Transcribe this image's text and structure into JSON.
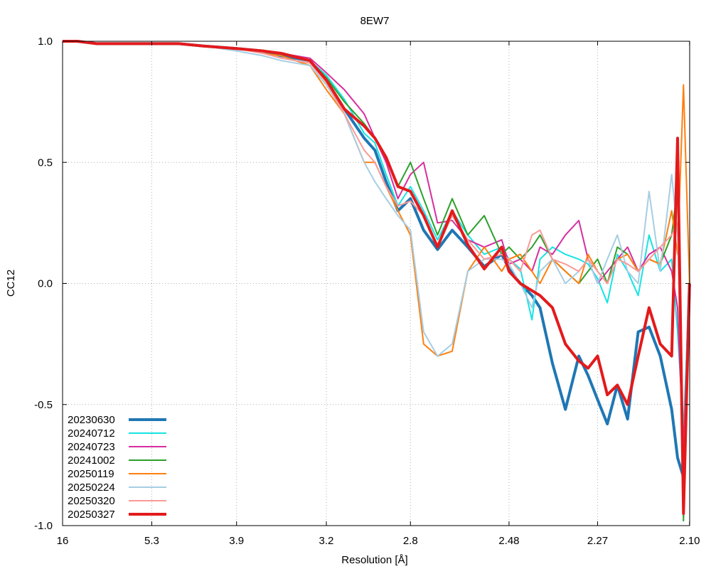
{
  "chart_data": {
    "type": "line",
    "title": "8EW7",
    "xlabel": "Resolution [Å]",
    "ylabel": "CC12",
    "xlim": [
      0.0039,
      0.2268
    ],
    "ylim": [
      -1.0,
      1.0
    ],
    "x_scale": "reciprocal-squared resolution (1/d^2)",
    "grid": true,
    "legend_position": "bottom-left",
    "x_ticks": [
      {
        "label": "16",
        "value": 16
      },
      {
        "label": "5.3",
        "value": 5.3
      },
      {
        "label": "3.9",
        "value": 3.9
      },
      {
        "label": "3.2",
        "value": 3.2
      },
      {
        "label": "2.8",
        "value": 2.8
      },
      {
        "label": "2.48",
        "value": 2.48
      },
      {
        "label": "2.27",
        "value": 2.27
      },
      {
        "label": "2.10",
        "value": 2.1
      }
    ],
    "y_ticks": [
      {
        "label": "1.0",
        "value": 1.0
      },
      {
        "label": "0.5",
        "value": 0.5
      },
      {
        "label": "0.0",
        "value": 0.0
      },
      {
        "label": "-0.5",
        "value": -0.5
      },
      {
        "label": "-1.0",
        "value": -1.0
      }
    ],
    "x_resolution": [
      16,
      10.5,
      7.9,
      6.5,
      5.3,
      4.7,
      4.3,
      3.9,
      3.65,
      3.5,
      3.3,
      3.2,
      3.1,
      3.0,
      2.95,
      2.9,
      2.85,
      2.8,
      2.75,
      2.7,
      2.65,
      2.6,
      2.55,
      2.5,
      2.48,
      2.45,
      2.42,
      2.4,
      2.37,
      2.34,
      2.31,
      2.29,
      2.27,
      2.25,
      2.23,
      2.21,
      2.19,
      2.17,
      2.15,
      2.13,
      2.12,
      2.11,
      2.1
    ],
    "series": [
      {
        "name": "20230630",
        "color": "#1f77b4",
        "width": 4,
        "values": [
          1.0,
          1.0,
          0.99,
          0.99,
          0.99,
          0.99,
          0.98,
          0.97,
          0.96,
          0.94,
          0.92,
          0.84,
          0.72,
          0.6,
          0.55,
          0.42,
          0.3,
          0.35,
          0.22,
          0.14,
          0.22,
          0.15,
          0.07,
          0.12,
          0.06,
          0.0,
          -0.05,
          -0.1,
          -0.33,
          -0.52,
          -0.3,
          -0.38,
          -0.48,
          -0.58,
          -0.42,
          -0.56,
          -0.2,
          -0.18,
          -0.3,
          -0.52,
          -0.72,
          -0.8,
          0.0
        ]
      },
      {
        "name": "20240712",
        "color": "#17e3e3",
        "width": 2,
        "values": [
          1.0,
          1.0,
          0.99,
          0.99,
          0.99,
          0.99,
          0.98,
          0.97,
          0.96,
          0.95,
          0.92,
          0.86,
          0.76,
          0.62,
          0.58,
          0.45,
          0.32,
          0.4,
          0.3,
          0.18,
          0.3,
          0.2,
          0.12,
          0.15,
          0.1,
          0.06,
          -0.15,
          0.1,
          0.15,
          0.12,
          0.1,
          0.08,
          0.02,
          -0.08,
          0.12,
          0.05,
          -0.05,
          0.2,
          0.05,
          0.1,
          -0.2,
          -0.6,
          0.0
        ]
      },
      {
        "name": "20240723",
        "color": "#d62ea0",
        "width": 2,
        "values": [
          1.0,
          1.0,
          0.99,
          0.99,
          0.99,
          0.99,
          0.98,
          0.97,
          0.96,
          0.95,
          0.93,
          0.87,
          0.8,
          0.7,
          0.6,
          0.5,
          0.35,
          0.45,
          0.5,
          0.25,
          0.26,
          0.18,
          0.15,
          0.18,
          0.08,
          0.1,
          0.05,
          0.15,
          0.12,
          0.2,
          0.26,
          0.1,
          0.0,
          0.05,
          0.1,
          0.15,
          0.05,
          0.12,
          0.15,
          0.05,
          -0.1,
          -0.7,
          0.0
        ]
      },
      {
        "name": "20241002",
        "color": "#2ca02c",
        "width": 2,
        "values": [
          1.0,
          1.0,
          0.99,
          0.99,
          0.99,
          0.99,
          0.98,
          0.97,
          0.96,
          0.95,
          0.92,
          0.85,
          0.75,
          0.66,
          0.6,
          0.52,
          0.4,
          0.5,
          0.35,
          0.2,
          0.35,
          0.2,
          0.28,
          0.12,
          0.15,
          0.1,
          0.15,
          0.2,
          0.1,
          0.05,
          0.0,
          0.05,
          0.1,
          0.0,
          0.15,
          0.12,
          0.05,
          0.1,
          0.08,
          0.2,
          0.4,
          -0.98,
          0.0
        ]
      },
      {
        "name": "20250119",
        "color": "#ff7f0e",
        "width": 2,
        "values": [
          1.0,
          1.0,
          0.99,
          0.99,
          0.99,
          0.99,
          0.98,
          0.97,
          0.95,
          0.94,
          0.9,
          0.8,
          0.7,
          0.5,
          0.5,
          0.4,
          0.3,
          0.2,
          -0.25,
          -0.3,
          -0.28,
          0.05,
          0.15,
          0.05,
          0.1,
          0.12,
          0.05,
          0.0,
          0.1,
          0.05,
          0.0,
          0.12,
          0.05,
          0.0,
          0.1,
          0.12,
          0.05,
          0.1,
          0.08,
          0.3,
          0.12,
          0.82,
          0.0
        ]
      },
      {
        "name": "20250224",
        "color": "#a6cee3",
        "width": 2,
        "values": [
          1.0,
          1.0,
          0.99,
          0.99,
          0.99,
          0.99,
          0.98,
          0.96,
          0.94,
          0.92,
          0.9,
          0.82,
          0.7,
          0.5,
          0.42,
          0.35,
          0.28,
          0.22,
          -0.2,
          -0.3,
          -0.25,
          0.05,
          0.1,
          0.1,
          0.08,
          0.0,
          -0.1,
          0.05,
          0.1,
          0.0,
          0.05,
          0.1,
          0.0,
          0.1,
          0.2,
          0.05,
          0.0,
          0.38,
          0.05,
          0.45,
          0.2,
          -0.85,
          0.0
        ]
      },
      {
        "name": "20250320",
        "color": "#fb9a99",
        "width": 2,
        "values": [
          1.0,
          1.0,
          0.99,
          0.99,
          0.99,
          0.99,
          0.98,
          0.97,
          0.95,
          0.93,
          0.91,
          0.83,
          0.7,
          0.55,
          0.5,
          0.4,
          0.32,
          0.34,
          0.28,
          0.15,
          0.28,
          0.18,
          0.1,
          0.12,
          0.1,
          0.05,
          0.2,
          0.22,
          0.1,
          0.08,
          0.05,
          0.1,
          0.05,
          0.0,
          0.1,
          0.08,
          0.05,
          0.1,
          0.15,
          0.2,
          0.25,
          -0.8,
          0.0
        ]
      },
      {
        "name": "20250327",
        "color": "#e31a1c",
        "width": 4,
        "values": [
          1.0,
          1.0,
          0.99,
          0.99,
          0.99,
          0.99,
          0.98,
          0.97,
          0.96,
          0.95,
          0.92,
          0.84,
          0.72,
          0.65,
          0.6,
          0.52,
          0.4,
          0.38,
          0.28,
          0.15,
          0.3,
          0.16,
          0.06,
          0.15,
          0.05,
          0.0,
          -0.03,
          -0.05,
          -0.1,
          -0.25,
          -0.32,
          -0.35,
          -0.3,
          -0.46,
          -0.42,
          -0.5,
          -0.3,
          -0.1,
          -0.25,
          -0.3,
          0.6,
          -0.95,
          0.0
        ]
      }
    ]
  }
}
